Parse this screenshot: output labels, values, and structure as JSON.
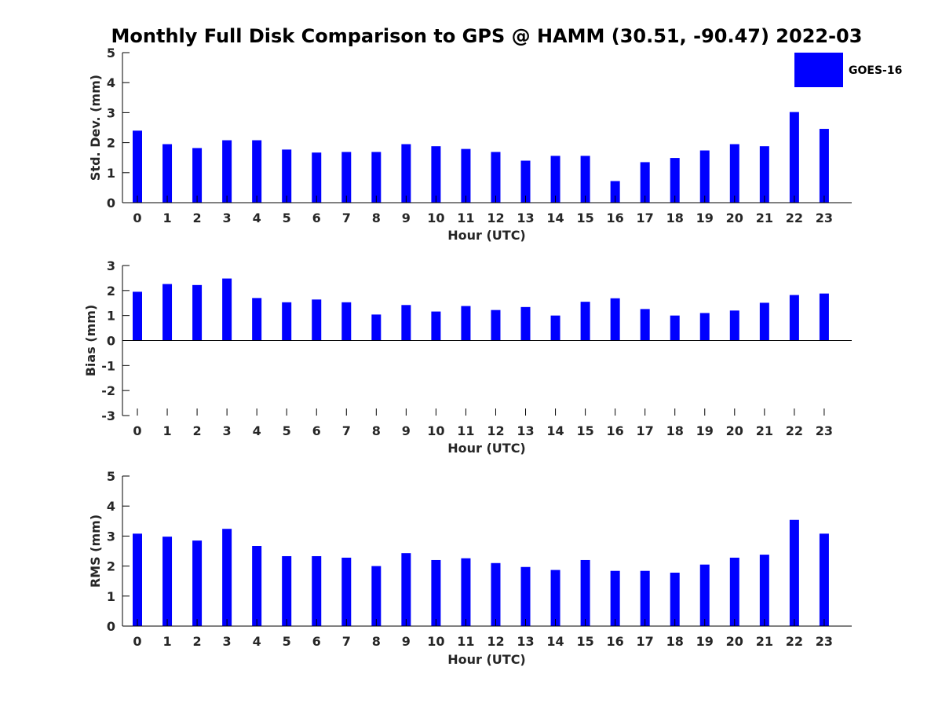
{
  "title": "Monthly Full Disk Comparison to GPS @ HAMM (30.51, -90.47) 2022-03",
  "legend": {
    "label": "GOES-16",
    "color": "#0000ff",
    "placement": "top-right"
  },
  "bar_color": "#0000ff",
  "chart_data": [
    {
      "type": "bar",
      "xlabel": "Hour (UTC)",
      "ylabel": "Std. Dev. (mm)",
      "ylim": [
        0,
        5
      ],
      "yticks": [
        0,
        1,
        2,
        3,
        4,
        5
      ],
      "categories": [
        "0",
        "1",
        "2",
        "3",
        "4",
        "5",
        "6",
        "7",
        "8",
        "9",
        "10",
        "11",
        "12",
        "13",
        "14",
        "15",
        "16",
        "17",
        "18",
        "19",
        "20",
        "21",
        "22",
        "23"
      ],
      "series": [
        {
          "name": "GOES-16",
          "values": [
            2.4,
            1.95,
            1.82,
            2.08,
            2.08,
            1.77,
            1.67,
            1.69,
            1.69,
            1.95,
            1.88,
            1.79,
            1.69,
            1.4,
            1.56,
            1.56,
            0.72,
            1.35,
            1.49,
            1.74,
            1.95,
            1.88,
            3.02,
            2.46
          ]
        }
      ],
      "grid": false
    },
    {
      "type": "bar",
      "xlabel": "Hour (UTC)",
      "ylabel": "Bias (mm)",
      "ylim": [
        -3,
        3
      ],
      "yticks": [
        -3,
        -2,
        -1,
        0,
        1,
        2,
        3
      ],
      "categories": [
        "0",
        "1",
        "2",
        "3",
        "4",
        "5",
        "6",
        "7",
        "8",
        "9",
        "10",
        "11",
        "12",
        "13",
        "14",
        "15",
        "16",
        "17",
        "18",
        "19",
        "20",
        "21",
        "22",
        "23"
      ],
      "series": [
        {
          "name": "GOES-16",
          "values": [
            1.95,
            2.26,
            2.22,
            2.48,
            1.7,
            1.53,
            1.64,
            1.53,
            1.04,
            1.42,
            1.16,
            1.38,
            1.22,
            1.34,
            1.0,
            1.55,
            1.69,
            1.26,
            1.0,
            1.1,
            1.2,
            1.51,
            1.82,
            1.88
          ]
        }
      ],
      "grid": false
    },
    {
      "type": "bar",
      "xlabel": "Hour (UTC)",
      "ylabel": "RMS (mm)",
      "ylim": [
        0,
        5
      ],
      "yticks": [
        0,
        1,
        2,
        3,
        4,
        5
      ],
      "categories": [
        "0",
        "1",
        "2",
        "3",
        "4",
        "5",
        "6",
        "7",
        "8",
        "9",
        "10",
        "11",
        "12",
        "13",
        "14",
        "15",
        "16",
        "17",
        "18",
        "19",
        "20",
        "21",
        "22",
        "23"
      ],
      "series": [
        {
          "name": "GOES-16",
          "values": [
            3.08,
            2.98,
            2.85,
            3.24,
            2.67,
            2.33,
            2.33,
            2.28,
            2.0,
            2.43,
            2.2,
            2.26,
            2.1,
            1.97,
            1.87,
            2.2,
            1.84,
            1.84,
            1.78,
            2.05,
            2.28,
            2.38,
            3.54,
            3.08
          ]
        }
      ],
      "grid": false
    }
  ]
}
